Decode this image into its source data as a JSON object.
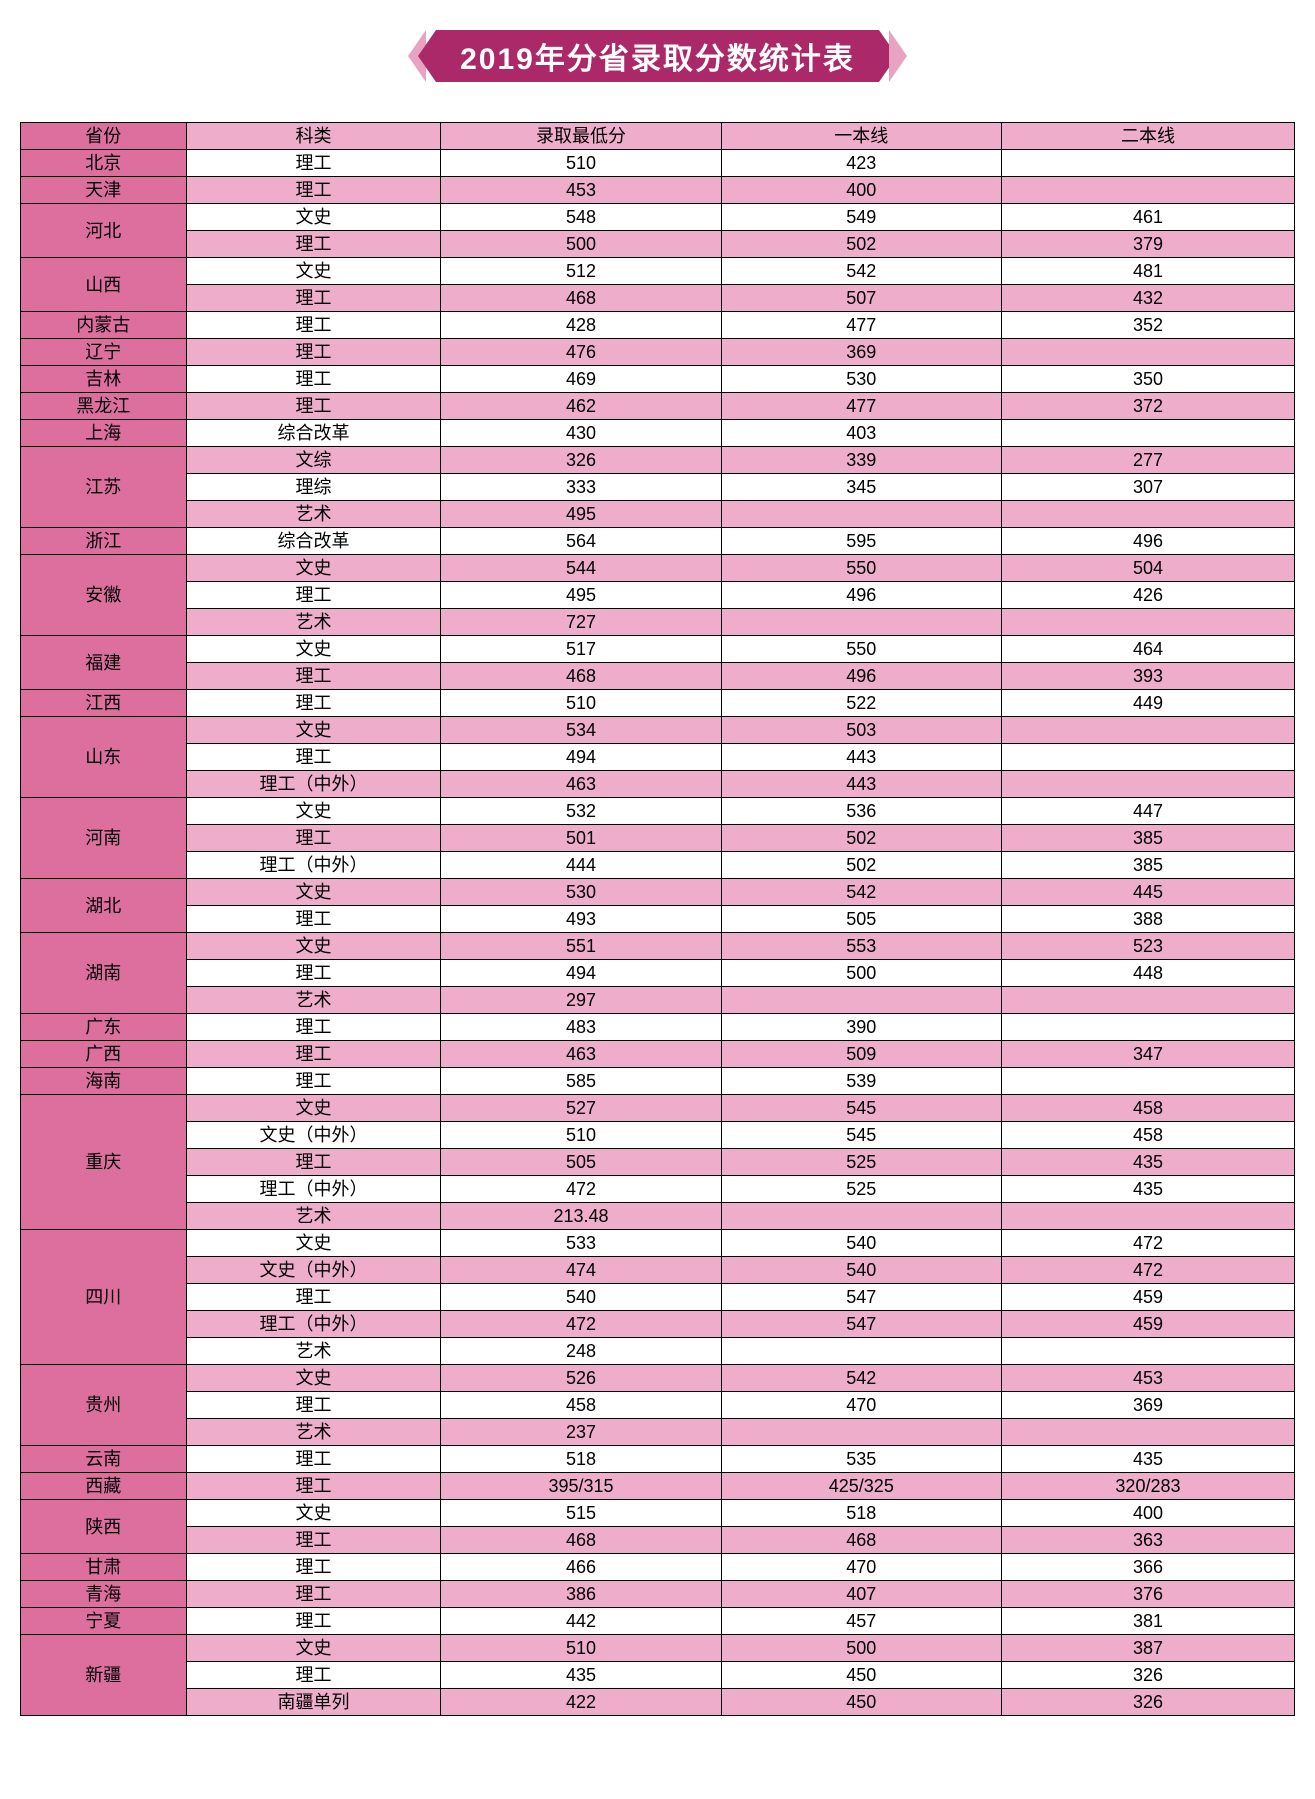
{
  "title": "2019年分省录取分数统计表",
  "colors": {
    "title_bg": "#ab2869",
    "title_chev_outer": "#e7a3c1",
    "province_bg": "#dd6f9f",
    "row_pink": "#eeadcb",
    "row_white": "#ffffff",
    "border": "#000000",
    "title_text": "#ffffff"
  },
  "columns": [
    "省份",
    "科类",
    "录取最低分",
    "一本线",
    "二本线"
  ],
  "provinces": [
    {
      "name": "北京",
      "rows": [
        {
          "cat": "理工",
          "min": "510",
          "t1": "423",
          "t2": ""
        }
      ]
    },
    {
      "name": "天津",
      "rows": [
        {
          "cat": "理工",
          "min": "453",
          "t1": "400",
          "t2": ""
        }
      ]
    },
    {
      "name": "河北",
      "rows": [
        {
          "cat": "文史",
          "min": "548",
          "t1": "549",
          "t2": "461"
        },
        {
          "cat": "理工",
          "min": "500",
          "t1": "502",
          "t2": "379"
        }
      ]
    },
    {
      "name": "山西",
      "rows": [
        {
          "cat": "文史",
          "min": "512",
          "t1": "542",
          "t2": "481"
        },
        {
          "cat": "理工",
          "min": "468",
          "t1": "507",
          "t2": "432"
        }
      ]
    },
    {
      "name": "内蒙古",
      "rows": [
        {
          "cat": "理工",
          "min": "428",
          "t1": "477",
          "t2": "352"
        }
      ]
    },
    {
      "name": "辽宁",
      "rows": [
        {
          "cat": "理工",
          "min": "476",
          "t1": "369",
          "t2": ""
        }
      ]
    },
    {
      "name": "吉林",
      "rows": [
        {
          "cat": "理工",
          "min": "469",
          "t1": "530",
          "t2": "350"
        }
      ]
    },
    {
      "name": "黑龙江",
      "rows": [
        {
          "cat": "理工",
          "min": "462",
          "t1": "477",
          "t2": "372"
        }
      ]
    },
    {
      "name": "上海",
      "rows": [
        {
          "cat": "综合改革",
          "min": "430",
          "t1": "403",
          "t2": ""
        }
      ]
    },
    {
      "name": "江苏",
      "rows": [
        {
          "cat": "文综",
          "min": "326",
          "t1": "339",
          "t2": "277"
        },
        {
          "cat": "理综",
          "min": "333",
          "t1": "345",
          "t2": "307"
        },
        {
          "cat": "艺术",
          "min": "495",
          "t1": "",
          "t2": ""
        }
      ]
    },
    {
      "name": "浙江",
      "rows": [
        {
          "cat": "综合改革",
          "min": "564",
          "t1": "595",
          "t2": "496"
        }
      ]
    },
    {
      "name": "安徽",
      "rows": [
        {
          "cat": "文史",
          "min": "544",
          "t1": "550",
          "t2": "504"
        },
        {
          "cat": "理工",
          "min": "495",
          "t1": "496",
          "t2": "426"
        },
        {
          "cat": "艺术",
          "min": "727",
          "t1": "",
          "t2": ""
        }
      ]
    },
    {
      "name": "福建",
      "rows": [
        {
          "cat": "文史",
          "min": "517",
          "t1": "550",
          "t2": "464"
        },
        {
          "cat": "理工",
          "min": "468",
          "t1": "496",
          "t2": "393"
        }
      ]
    },
    {
      "name": "江西",
      "rows": [
        {
          "cat": "理工",
          "min": "510",
          "t1": "522",
          "t2": "449"
        }
      ]
    },
    {
      "name": "山东",
      "rows": [
        {
          "cat": "文史",
          "min": "534",
          "t1": "503",
          "t2": ""
        },
        {
          "cat": "理工",
          "min": "494",
          "t1": "443",
          "t2": ""
        },
        {
          "cat": "理工（中外）",
          "min": "463",
          "t1": "443",
          "t2": ""
        }
      ]
    },
    {
      "name": "河南",
      "rows": [
        {
          "cat": "文史",
          "min": "532",
          "t1": "536",
          "t2": "447"
        },
        {
          "cat": "理工",
          "min": "501",
          "t1": "502",
          "t2": "385"
        },
        {
          "cat": "理工（中外）",
          "min": "444",
          "t1": "502",
          "t2": "385"
        }
      ]
    },
    {
      "name": "湖北",
      "rows": [
        {
          "cat": "文史",
          "min": "530",
          "t1": "542",
          "t2": "445"
        },
        {
          "cat": "理工",
          "min": "493",
          "t1": "505",
          "t2": "388"
        }
      ]
    },
    {
      "name": "湖南",
      "rows": [
        {
          "cat": "文史",
          "min": "551",
          "t1": "553",
          "t2": "523"
        },
        {
          "cat": "理工",
          "min": "494",
          "t1": "500",
          "t2": "448"
        },
        {
          "cat": "艺术",
          "min": "297",
          "t1": "",
          "t2": ""
        }
      ]
    },
    {
      "name": "广东",
      "rows": [
        {
          "cat": "理工",
          "min": "483",
          "t1": "390",
          "t2": ""
        }
      ]
    },
    {
      "name": "广西",
      "rows": [
        {
          "cat": "理工",
          "min": "463",
          "t1": "509",
          "t2": "347"
        }
      ]
    },
    {
      "name": "海南",
      "rows": [
        {
          "cat": "理工",
          "min": "585",
          "t1": "539",
          "t2": ""
        }
      ]
    },
    {
      "name": "重庆",
      "rows": [
        {
          "cat": "文史",
          "min": "527",
          "t1": "545",
          "t2": "458"
        },
        {
          "cat": "文史（中外）",
          "min": "510",
          "t1": "545",
          "t2": "458"
        },
        {
          "cat": "理工",
          "min": "505",
          "t1": "525",
          "t2": "435"
        },
        {
          "cat": "理工（中外）",
          "min": "472",
          "t1": "525",
          "t2": "435"
        },
        {
          "cat": "艺术",
          "min": "213.48",
          "t1": "",
          "t2": ""
        }
      ]
    },
    {
      "name": "四川",
      "rows": [
        {
          "cat": "文史",
          "min": "533",
          "t1": "540",
          "t2": "472"
        },
        {
          "cat": "文史（中外）",
          "min": "474",
          "t1": "540",
          "t2": "472"
        },
        {
          "cat": "理工",
          "min": "540",
          "t1": "547",
          "t2": "459"
        },
        {
          "cat": "理工（中外）",
          "min": "472",
          "t1": "547",
          "t2": "459"
        },
        {
          "cat": "艺术",
          "min": "248",
          "t1": "",
          "t2": ""
        }
      ]
    },
    {
      "name": "贵州",
      "rows": [
        {
          "cat": "文史",
          "min": "526",
          "t1": "542",
          "t2": "453"
        },
        {
          "cat": "理工",
          "min": "458",
          "t1": "470",
          "t2": "369"
        },
        {
          "cat": "艺术",
          "min": "237",
          "t1": "",
          "t2": ""
        }
      ]
    },
    {
      "name": "云南",
      "rows": [
        {
          "cat": "理工",
          "min": "518",
          "t1": "535",
          "t2": "435"
        }
      ]
    },
    {
      "name": "西藏",
      "rows": [
        {
          "cat": "理工",
          "min": "395/315",
          "t1": "425/325",
          "t2": "320/283"
        }
      ]
    },
    {
      "name": "陕西",
      "rows": [
        {
          "cat": "文史",
          "min": "515",
          "t1": "518",
          "t2": "400"
        },
        {
          "cat": "理工",
          "min": "468",
          "t1": "468",
          "t2": "363"
        }
      ]
    },
    {
      "name": "甘肃",
      "rows": [
        {
          "cat": "理工",
          "min": "466",
          "t1": "470",
          "t2": "366"
        }
      ]
    },
    {
      "name": "青海",
      "rows": [
        {
          "cat": "理工",
          "min": "386",
          "t1": "407",
          "t2": "376"
        }
      ]
    },
    {
      "name": "宁夏",
      "rows": [
        {
          "cat": "理工",
          "min": "442",
          "t1": "457",
          "t2": "381"
        }
      ]
    },
    {
      "name": "新疆",
      "rows": [
        {
          "cat": "文史",
          "min": "510",
          "t1": "500",
          "t2": "387"
        },
        {
          "cat": "理工",
          "min": "435",
          "t1": "450",
          "t2": "326"
        },
        {
          "cat": "南疆单列",
          "min": "422",
          "t1": "450",
          "t2": "326"
        }
      ]
    }
  ]
}
